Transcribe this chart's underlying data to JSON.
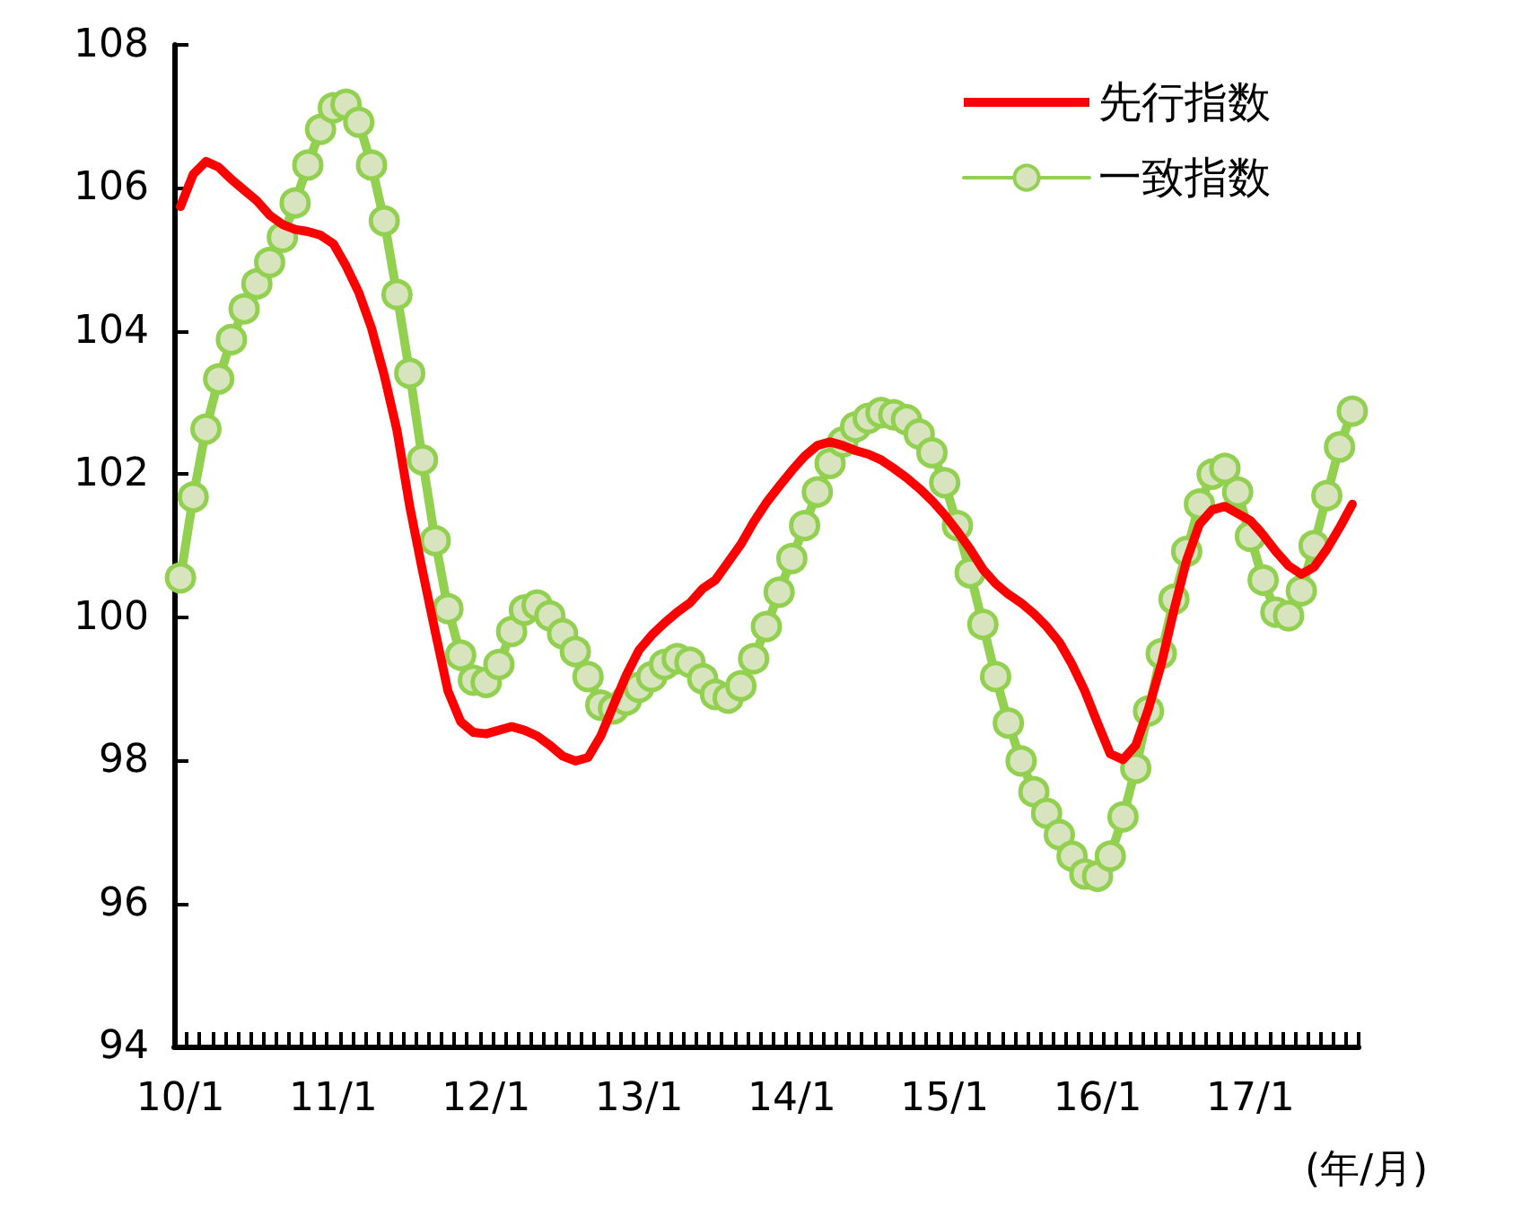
{
  "chart_data": {
    "type": "line",
    "xlabel": "(年/月)",
    "categories": [
      "10/1",
      null,
      null,
      null,
      null,
      null,
      null,
      null,
      null,
      null,
      null,
      null,
      "11/1",
      null,
      null,
      null,
      null,
      null,
      null,
      null,
      null,
      null,
      null,
      null,
      "12/1",
      null,
      null,
      null,
      null,
      null,
      null,
      null,
      null,
      null,
      null,
      null,
      "13/1",
      null,
      null,
      null,
      null,
      null,
      null,
      null,
      null,
      null,
      null,
      null,
      "14/1",
      null,
      null,
      null,
      null,
      null,
      null,
      null,
      null,
      null,
      null,
      null,
      "15/1",
      null,
      null,
      null,
      null,
      null,
      null,
      null,
      null,
      null,
      null,
      null,
      "16/1",
      null,
      null,
      null,
      null,
      null,
      null,
      null,
      null,
      null,
      null,
      null,
      "17/1",
      null,
      null,
      null,
      null,
      null,
      null,
      null,
      null
    ],
    "series": [
      {
        "name": "先行指数",
        "color": "#ff0000",
        "marker": "none",
        "values": [
          105.74,
          106.19,
          106.37,
          106.29,
          106.12,
          105.97,
          105.82,
          105.62,
          105.49,
          105.42,
          105.39,
          105.34,
          105.22,
          104.91,
          104.54,
          104.04,
          103.38,
          102.61,
          101.55,
          100.65,
          99.8,
          98.97,
          98.54,
          98.39,
          98.37,
          98.42,
          98.47,
          98.42,
          98.34,
          98.21,
          98.06,
          97.99,
          98.04,
          98.34,
          98.77,
          99.19,
          99.54,
          99.75,
          99.92,
          100.07,
          100.2,
          100.4,
          100.52,
          100.77,
          101.02,
          101.33,
          101.6,
          101.83,
          102.05,
          102.25,
          102.4,
          102.45,
          102.4,
          102.33,
          102.28,
          102.2,
          102.08,
          101.95,
          101.8,
          101.63,
          101.43,
          101.2,
          100.95,
          100.67,
          100.47,
          100.32,
          100.2,
          100.05,
          99.87,
          99.65,
          99.34,
          98.97,
          98.52,
          98.09,
          98.01,
          98.21,
          98.72,
          99.34,
          100.1,
          100.8,
          101.3,
          101.5,
          101.55,
          101.45,
          101.35,
          101.15,
          100.92,
          100.72,
          100.6,
          100.7,
          100.95,
          101.25,
          101.58
        ]
      },
      {
        "name": "一致指数",
        "color": "#92d050",
        "marker": "circle",
        "values": [
          100.55,
          101.68,
          102.63,
          103.33,
          103.88,
          104.31,
          104.66,
          104.96,
          105.31,
          105.79,
          106.32,
          106.82,
          107.12,
          107.17,
          106.92,
          106.32,
          105.54,
          104.51,
          103.41,
          102.2,
          101.07,
          100.12,
          99.47,
          99.12,
          99.09,
          99.34,
          99.8,
          100.1,
          100.17,
          100.02,
          99.77,
          99.52,
          99.17,
          98.77,
          98.72,
          98.84,
          99.02,
          99.17,
          99.34,
          99.42,
          99.37,
          99.14,
          98.92,
          98.87,
          99.04,
          99.42,
          99.87,
          100.35,
          100.82,
          101.28,
          101.75,
          102.15,
          102.45,
          102.66,
          102.78,
          102.86,
          102.83,
          102.76,
          102.56,
          102.3,
          101.88,
          101.28,
          100.62,
          99.9,
          99.17,
          98.52,
          97.99,
          97.56,
          97.26,
          96.96,
          96.66,
          96.41,
          96.38,
          96.66,
          97.21,
          97.89,
          98.69,
          99.49,
          100.25,
          100.92,
          101.58,
          102.0,
          102.08,
          101.75,
          101.13,
          100.52,
          100.07,
          100.02,
          100.37,
          101.0,
          101.7,
          102.38,
          102.88
        ]
      }
    ],
    "ylim": [
      94,
      108
    ],
    "yticks": [
      94,
      96,
      98,
      100,
      102,
      104,
      106,
      108
    ],
    "grid": false,
    "legend": "top right"
  }
}
